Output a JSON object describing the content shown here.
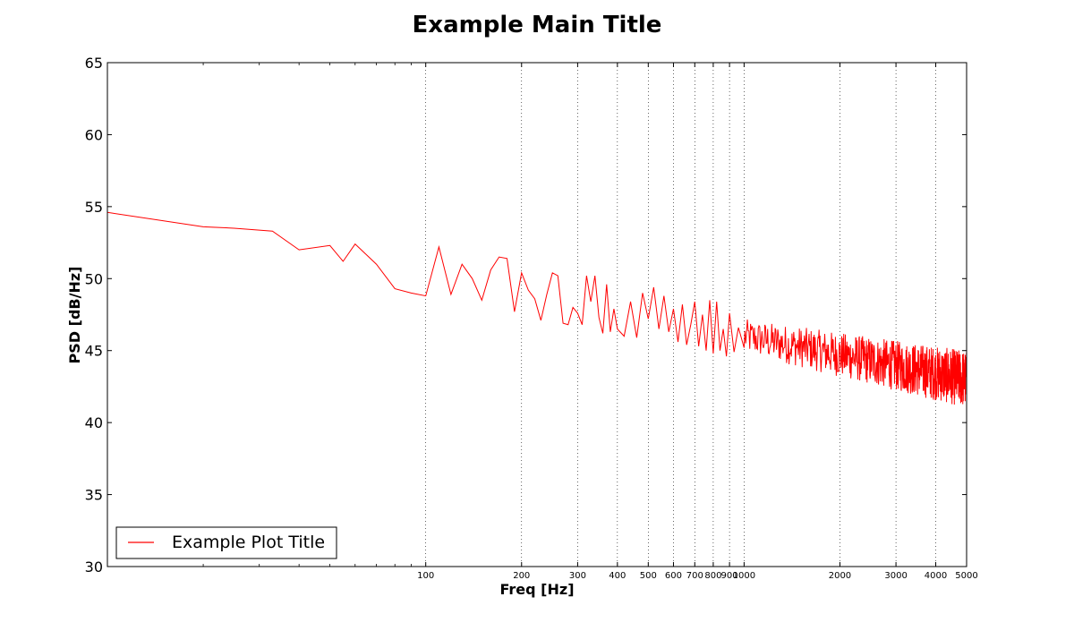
{
  "chart_data": {
    "type": "line",
    "title": "Example Main Title",
    "xlabel": "Freq [Hz]",
    "ylabel": "PSD [dB/Hz]",
    "xscale": "log",
    "xlim": [
      10,
      5000
    ],
    "ylim": [
      30,
      65
    ],
    "yticks": [
      30,
      35,
      40,
      45,
      50,
      55,
      60,
      65
    ],
    "xticks": [
      100,
      200,
      300,
      400,
      500,
      600,
      700,
      800,
      900,
      1000,
      2000,
      3000,
      4000,
      5000
    ],
    "xtick_labels": [
      "100",
      "200",
      "300",
      "400",
      "500",
      "600",
      "700",
      "800",
      "900",
      "1000",
      "2000",
      "3000",
      "4000",
      "5000"
    ],
    "grid": "x-major-dotted",
    "legend_placement": "lower-left",
    "series_color": "#ff0000",
    "series": [
      {
        "name": "Example Plot Title",
        "x": [
          10,
          20,
          25,
          33,
          40,
          50,
          55,
          60,
          70,
          80,
          90,
          100,
          110,
          120,
          130,
          140,
          150,
          160,
          170,
          180,
          190,
          200,
          210,
          220,
          230,
          240,
          250,
          260,
          270,
          280,
          290,
          300,
          310,
          320,
          330,
          340,
          350,
          360,
          370,
          380,
          390,
          400,
          420,
          440,
          460,
          480,
          500,
          520,
          540,
          560,
          580,
          600,
          620,
          640,
          660,
          680,
          700,
          720,
          740,
          760,
          780,
          800,
          820,
          840,
          860,
          880,
          900,
          930,
          960,
          1000
        ],
        "y": [
          54.6,
          53.6,
          53.5,
          53.3,
          52.0,
          52.3,
          51.2,
          52.4,
          51.0,
          49.3,
          49.0,
          48.8,
          52.2,
          48.9,
          51.0,
          50.0,
          48.5,
          50.6,
          51.5,
          51.4,
          47.7,
          50.4,
          49.2,
          48.6,
          47.1,
          48.9,
          50.4,
          50.2,
          46.9,
          46.8,
          48.0,
          47.6,
          46.8,
          50.2,
          48.4,
          50.2,
          47.3,
          46.2,
          49.6,
          46.3,
          47.9,
          46.5,
          46.0,
          48.4,
          45.9,
          49.0,
          47.2,
          49.4,
          46.5,
          48.8,
          46.3,
          47.9,
          45.6,
          48.2,
          45.4,
          46.8,
          48.4,
          45.3,
          47.5,
          45.0,
          48.5,
          44.8,
          48.4,
          45.0,
          46.5,
          44.6,
          47.6,
          44.9,
          46.6,
          45.2
        ],
        "noise_from": 1000,
        "noise_trend_start": 46.0,
        "noise_trend_end": 43.0,
        "noise_amp_start": 1.2,
        "noise_amp_end": 2.0
      }
    ]
  }
}
